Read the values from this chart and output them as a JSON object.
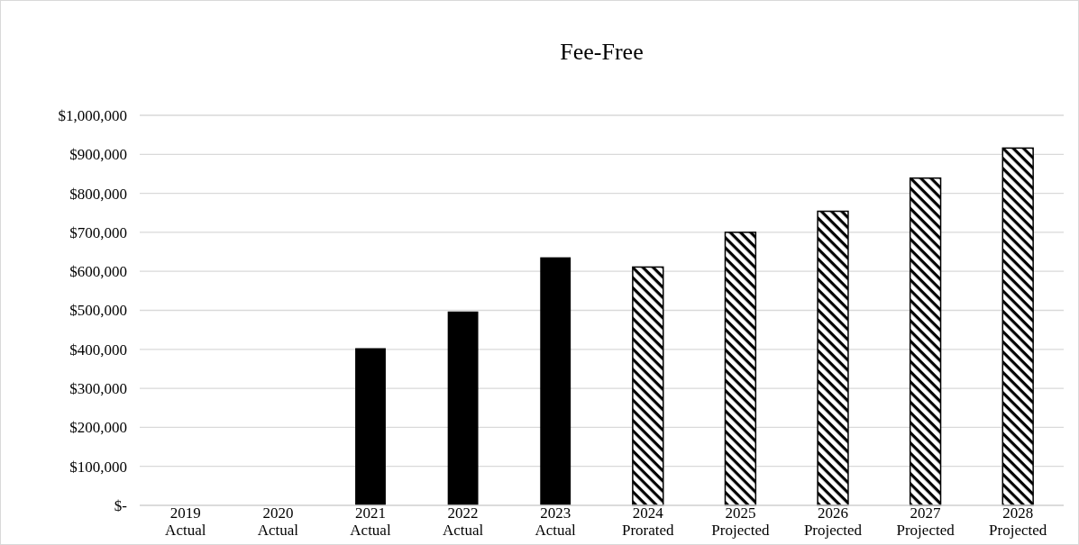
{
  "chart_data": {
    "type": "bar",
    "title": "Fee-Free",
    "categories": [
      "2019\nActual",
      "2020\nActual",
      "2021\nActual",
      "2022\nActual",
      "2023\nActual",
      "2024\nProrated",
      "2025\nProjected",
      "2026\nProjected",
      "2027\nProjected",
      "2028\nProjected"
    ],
    "series": [
      {
        "color": "#000000",
        "values": [
          null,
          null,
          403000,
          497000,
          636000,
          null,
          null,
          null,
          null,
          null
        ]
      },
      {
        "color": "#000000",
        "values": [
          null,
          null,
          null,
          null,
          null,
          611000,
          700000,
          754000,
          839000,
          916000
        ]
      }
    ],
    "ylim": [
      0,
      1000000
    ],
    "yticks": [
      {
        "value": 0,
        "label": "$-"
      },
      {
        "value": 100000,
        "label": "$100,000"
      },
      {
        "value": 200000,
        "label": "$200,000"
      },
      {
        "value": 300000,
        "label": "$300,000"
      },
      {
        "value": 400000,
        "label": "$400,000"
      },
      {
        "value": 500000,
        "label": "$500,000"
      },
      {
        "value": 600000,
        "label": "$600,000"
      },
      {
        "value": 700000,
        "label": "$700,000"
      },
      {
        "value": 800000,
        "label": "$800,000"
      },
      {
        "value": 900000,
        "label": "$900,000"
      },
      {
        "value": 1000000,
        "label": "$1,000,000"
      }
    ],
    "grid": "y"
  }
}
